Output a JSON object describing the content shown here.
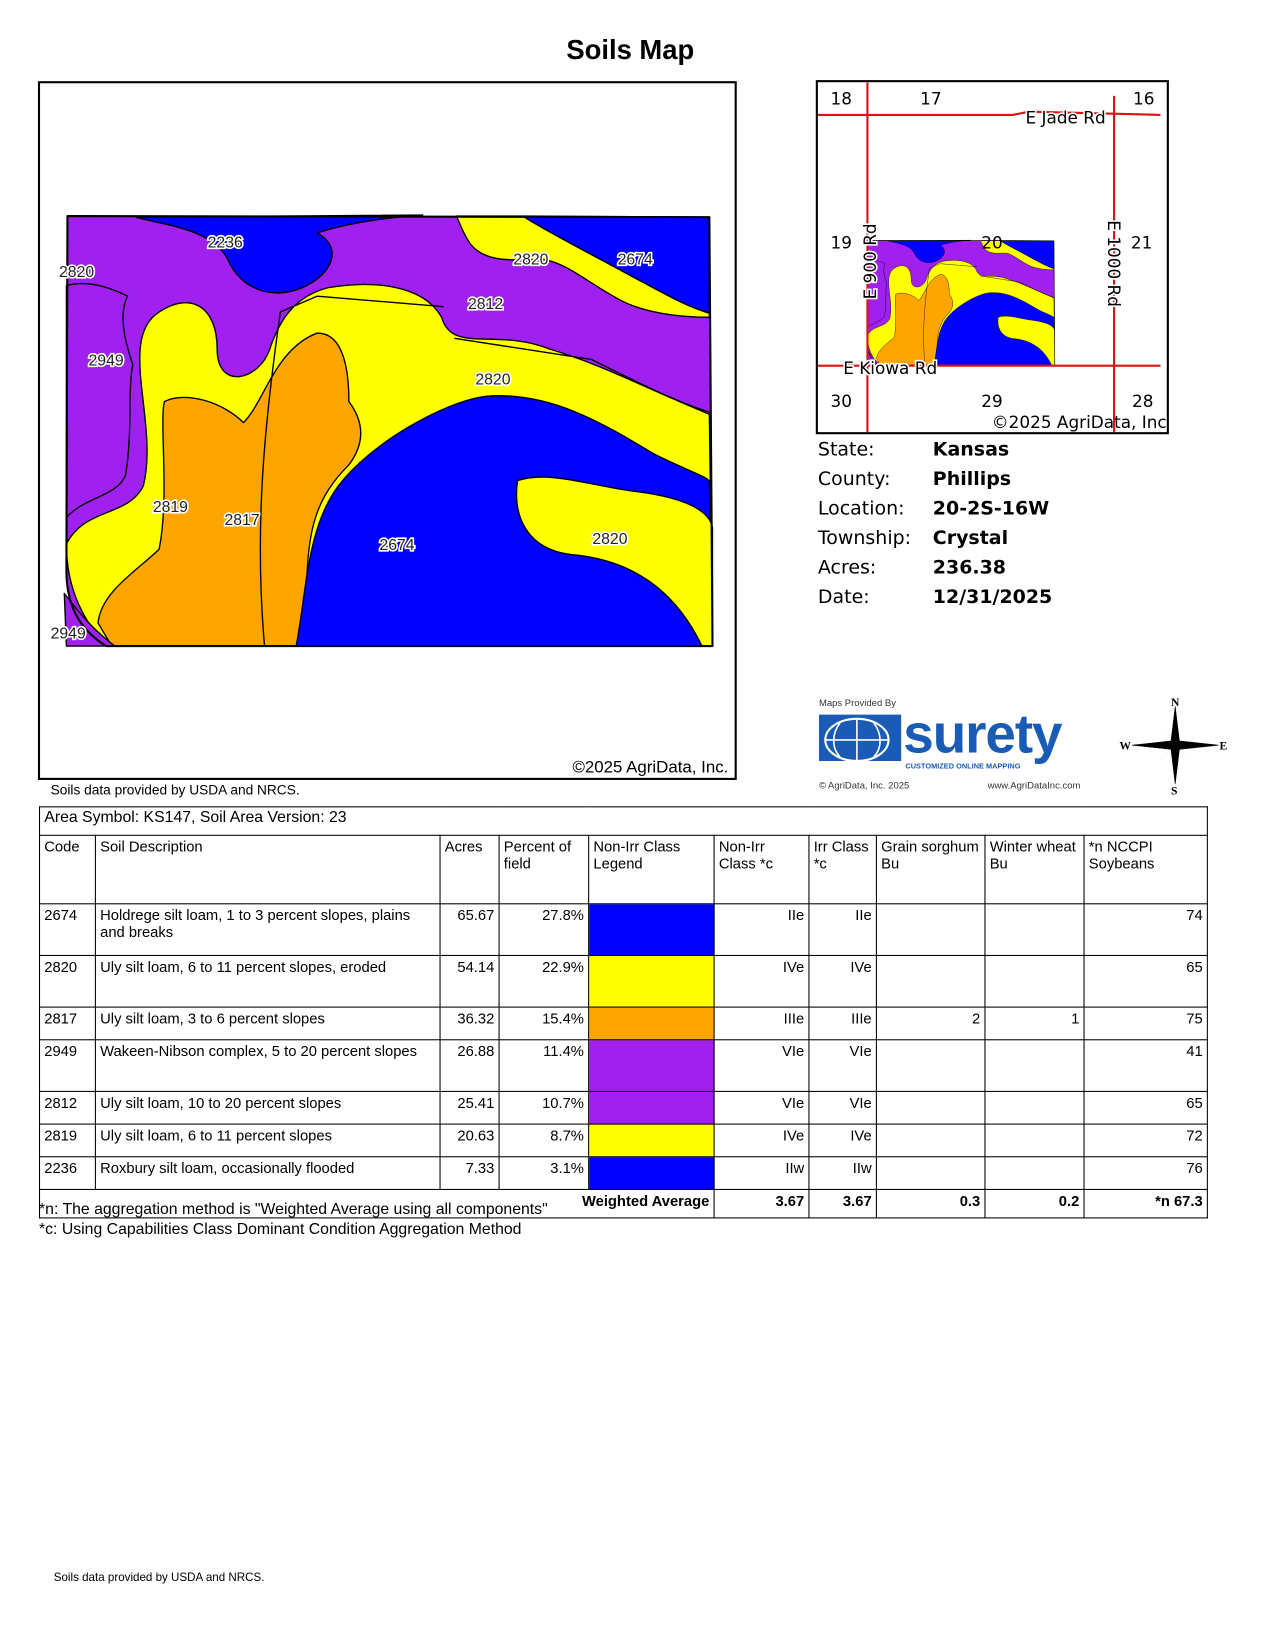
{
  "title": "Soils Map",
  "main_map": {
    "copyright": "©2025 AgriData, Inc.",
    "labels": [
      "2236",
      "2820",
      "2674",
      "2820",
      "2812",
      "2949",
      "2820",
      "2819",
      "2817",
      "2674",
      "2820",
      "2949"
    ],
    "colors": {
      "blue": "#0000ff",
      "yellow": "#ffff00",
      "orange": "#ffa500",
      "purple": "#a020f0"
    }
  },
  "inset_map": {
    "sections": [
      "18",
      "17",
      "16",
      "19",
      "20",
      "21",
      "30",
      "29",
      "28"
    ],
    "roads": [
      "E Jade Rd",
      "E 900 Rd",
      "E 1000 Rd",
      "E Kiowa Rd"
    ],
    "copyright": "©2025 AgriData, Inc.",
    "road_color": "#dd1111"
  },
  "info": [
    {
      "label": "State:",
      "value": "Kansas"
    },
    {
      "label": "County:",
      "value": "Phillips"
    },
    {
      "label": "Location:",
      "value": "20-2S-16W"
    },
    {
      "label": "Township:",
      "value": "Crystal"
    },
    {
      "label": "Acres:",
      "value": "236.38"
    },
    {
      "label": "Date:",
      "value": "12/31/2025"
    }
  ],
  "logo": {
    "provided_by": "Maps Provided By",
    "brand": "surety",
    "tagline": "CUSTOMIZED ONLINE MAPPING",
    "copyright": "© AgriData, Inc. 2025",
    "url": "www.AgriDataInc.com"
  },
  "compass": {
    "n": "N",
    "s": "S",
    "e": "E",
    "w": "W"
  },
  "source_note": "Soils data provided by USDA and NRCS.",
  "table": {
    "area_symbol": "Area Symbol: KS147, Soil Area Version: 23",
    "headers": [
      "Code",
      "Soil Description",
      "Acres",
      "Percent of field",
      "Non-Irr Class Legend",
      "Non-Irr Class *c",
      "Irr Class *c",
      "Grain sorghum Bu",
      "Winter wheat Bu",
      "*n NCCPI Soybeans"
    ],
    "rows": [
      {
        "code": "2674",
        "desc": "Holdrege silt loam, 1 to 3 percent slopes, plains and breaks",
        "acres": "65.67",
        "pct": "27.8%",
        "color": "#0000ff",
        "nonirr": "IIe",
        "irr": "IIe",
        "sorghum": "",
        "wheat": "",
        "nccpi": "74"
      },
      {
        "code": "2820",
        "desc": "Uly silt loam, 6 to 11 percent slopes, eroded",
        "acres": "54.14",
        "pct": "22.9%",
        "color": "#ffff00",
        "nonirr": "IVe",
        "irr": "IVe",
        "sorghum": "",
        "wheat": "",
        "nccpi": "65"
      },
      {
        "code": "2817",
        "desc": "Uly silt loam, 3 to 6 percent slopes",
        "acres": "36.32",
        "pct": "15.4%",
        "color": "#ffa500",
        "nonirr": "IIIe",
        "irr": "IIIe",
        "sorghum": "2",
        "wheat": "1",
        "nccpi": "75"
      },
      {
        "code": "2949",
        "desc": "Wakeen-Nibson complex, 5 to 20 percent slopes",
        "acres": "26.88",
        "pct": "11.4%",
        "color": "#a020f0",
        "nonirr": "VIe",
        "irr": "VIe",
        "sorghum": "",
        "wheat": "",
        "nccpi": "41"
      },
      {
        "code": "2812",
        "desc": "Uly silt loam, 10 to 20 percent slopes",
        "acres": "25.41",
        "pct": "10.7%",
        "color": "#a020f0",
        "nonirr": "VIe",
        "irr": "VIe",
        "sorghum": "",
        "wheat": "",
        "nccpi": "65"
      },
      {
        "code": "2819",
        "desc": "Uly silt loam, 6 to 11 percent slopes",
        "acres": "20.63",
        "pct": "8.7%",
        "color": "#ffff00",
        "nonirr": "IVe",
        "irr": "IVe",
        "sorghum": "",
        "wheat": "",
        "nccpi": "72"
      },
      {
        "code": "2236",
        "desc": "Roxbury silt loam, occasionally flooded",
        "acres": "7.33",
        "pct": "3.1%",
        "color": "#0000ff",
        "nonirr": "IIw",
        "irr": "IIw",
        "sorghum": "",
        "wheat": "",
        "nccpi": "76"
      }
    ],
    "weighted": {
      "label": "Weighted Average",
      "nonirr": "3.67",
      "irr": "3.67",
      "sorghum": "0.3",
      "wheat": "0.2",
      "nccpi": "*n 67.3"
    }
  },
  "footnotes": [
    "*n: The aggregation method is \"Weighted Average using all components\"",
    "*c: Using Capabilities Class Dominant Condition Aggregation Method"
  ]
}
